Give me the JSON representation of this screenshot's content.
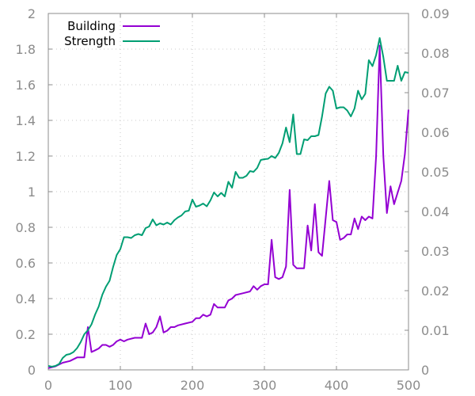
{
  "chart_data": {
    "type": "line",
    "title": "",
    "xlabel": "",
    "ylabel": "",
    "y2label": "",
    "grid": true,
    "legend_position": "top-left",
    "xlim": [
      0,
      500
    ],
    "ylim": [
      0,
      2
    ],
    "y2lim": [
      0,
      0.09
    ],
    "x_ticks": [
      0,
      100,
      200,
      300,
      400,
      500
    ],
    "y_ticks": [
      0,
      0.2,
      0.4,
      0.6,
      0.8,
      1,
      1.2,
      1.4,
      1.6,
      1.8,
      2
    ],
    "y2_ticks": [
      0,
      0.01,
      0.02,
      0.03,
      0.04,
      0.05,
      0.06,
      0.07,
      0.08,
      0.09
    ],
    "series": [
      {
        "name": "Building",
        "axis": "left",
        "color": "#9400d3",
        "points": [
          [
            0,
            0.01
          ],
          [
            10,
            0.02
          ],
          [
            20,
            0.04
          ],
          [
            30,
            0.05
          ],
          [
            40,
            0.07
          ],
          [
            50,
            0.07
          ],
          [
            55,
            0.24
          ],
          [
            60,
            0.1
          ],
          [
            65,
            0.11
          ],
          [
            70,
            0.12
          ],
          [
            75,
            0.14
          ],
          [
            80,
            0.14
          ],
          [
            85,
            0.13
          ],
          [
            90,
            0.14
          ],
          [
            95,
            0.16
          ],
          [
            100,
            0.17
          ],
          [
            105,
            0.16
          ],
          [
            110,
            0.17
          ],
          [
            120,
            0.18
          ],
          [
            130,
            0.18
          ],
          [
            135,
            0.26
          ],
          [
            140,
            0.2
          ],
          [
            145,
            0.21
          ],
          [
            150,
            0.24
          ],
          [
            155,
            0.3
          ],
          [
            160,
            0.21
          ],
          [
            165,
            0.22
          ],
          [
            170,
            0.24
          ],
          [
            175,
            0.24
          ],
          [
            180,
            0.25
          ],
          [
            190,
            0.26
          ],
          [
            200,
            0.27
          ],
          [
            205,
            0.29
          ],
          [
            210,
            0.29
          ],
          [
            215,
            0.31
          ],
          [
            220,
            0.3
          ],
          [
            225,
            0.31
          ],
          [
            230,
            0.37
          ],
          [
            235,
            0.35
          ],
          [
            240,
            0.35
          ],
          [
            245,
            0.35
          ],
          [
            250,
            0.39
          ],
          [
            255,
            0.4
          ],
          [
            260,
            0.42
          ],
          [
            270,
            0.43
          ],
          [
            280,
            0.44
          ],
          [
            285,
            0.47
          ],
          [
            290,
            0.45
          ],
          [
            295,
            0.47
          ],
          [
            300,
            0.48
          ],
          [
            305,
            0.48
          ],
          [
            310,
            0.73
          ],
          [
            315,
            0.52
          ],
          [
            320,
            0.51
          ],
          [
            325,
            0.52
          ],
          [
            330,
            0.58
          ],
          [
            335,
            1.01
          ],
          [
            340,
            0.59
          ],
          [
            345,
            0.57
          ],
          [
            350,
            0.57
          ],
          [
            355,
            0.57
          ],
          [
            360,
            0.81
          ],
          [
            365,
            0.67
          ],
          [
            370,
            0.93
          ],
          [
            375,
            0.66
          ],
          [
            380,
            0.64
          ],
          [
            390,
            1.06
          ],
          [
            395,
            0.84
          ],
          [
            400,
            0.83
          ],
          [
            405,
            0.73
          ],
          [
            410,
            0.74
          ],
          [
            415,
            0.76
          ],
          [
            420,
            0.76
          ],
          [
            425,
            0.85
          ],
          [
            430,
            0.79
          ],
          [
            435,
            0.86
          ],
          [
            440,
            0.84
          ],
          [
            445,
            0.86
          ],
          [
            450,
            0.85
          ],
          [
            455,
            1.2
          ],
          [
            460,
            1.82
          ],
          [
            465,
            1.2
          ],
          [
            470,
            0.88
          ],
          [
            475,
            1.03
          ],
          [
            480,
            0.93
          ],
          [
            490,
            1.06
          ],
          [
            495,
            1.21
          ],
          [
            500,
            1.46
          ]
        ]
      },
      {
        "name": "Strength",
        "axis": "right",
        "color": "#009e73",
        "points": [
          [
            0,
            0.001
          ],
          [
            5,
            0.0008
          ],
          [
            10,
            0.001
          ],
          [
            15,
            0.0015
          ],
          [
            20,
            0.003
          ],
          [
            25,
            0.0038
          ],
          [
            30,
            0.004
          ],
          [
            35,
            0.0045
          ],
          [
            40,
            0.0055
          ],
          [
            45,
            0.007
          ],
          [
            50,
            0.009
          ],
          [
            55,
            0.01
          ],
          [
            60,
            0.0115
          ],
          [
            65,
            0.014
          ],
          [
            70,
            0.016
          ],
          [
            75,
            0.019
          ],
          [
            80,
            0.021
          ],
          [
            85,
            0.0225
          ],
          [
            90,
            0.026
          ],
          [
            95,
            0.029
          ],
          [
            100,
            0.0305
          ],
          [
            105,
            0.0335
          ],
          [
            110,
            0.0335
          ],
          [
            115,
            0.0333
          ],
          [
            120,
            0.034
          ],
          [
            125,
            0.0343
          ],
          [
            130,
            0.034
          ],
          [
            135,
            0.0358
          ],
          [
            140,
            0.0362
          ],
          [
            145,
            0.038
          ],
          [
            150,
            0.0365
          ],
          [
            155,
            0.037
          ],
          [
            160,
            0.0367
          ],
          [
            165,
            0.0372
          ],
          [
            170,
            0.0367
          ],
          [
            175,
            0.0378
          ],
          [
            180,
            0.0385
          ],
          [
            185,
            0.039
          ],
          [
            190,
            0.04
          ],
          [
            195,
            0.0402
          ],
          [
            200,
            0.043
          ],
          [
            205,
            0.0412
          ],
          [
            210,
            0.0415
          ],
          [
            215,
            0.042
          ],
          [
            220,
            0.0413
          ],
          [
            225,
            0.0428
          ],
          [
            230,
            0.0448
          ],
          [
            235,
            0.0438
          ],
          [
            240,
            0.0447
          ],
          [
            245,
            0.0438
          ],
          [
            250,
            0.0475
          ],
          [
            255,
            0.046
          ],
          [
            260,
            0.05
          ],
          [
            265,
            0.0485
          ],
          [
            270,
            0.0485
          ],
          [
            275,
            0.049
          ],
          [
            280,
            0.0502
          ],
          [
            285,
            0.05
          ],
          [
            290,
            0.051
          ],
          [
            295,
            0.053
          ],
          [
            300,
            0.0532
          ],
          [
            305,
            0.0533
          ],
          [
            310,
            0.054
          ],
          [
            315,
            0.0535
          ],
          [
            320,
            0.0548
          ],
          [
            325,
            0.0572
          ],
          [
            330,
            0.0612
          ],
          [
            335,
            0.0575
          ],
          [
            340,
            0.0645
          ],
          [
            345,
            0.0545
          ],
          [
            350,
            0.0545
          ],
          [
            355,
            0.0582
          ],
          [
            360,
            0.058
          ],
          [
            365,
            0.059
          ],
          [
            370,
            0.059
          ],
          [
            375,
            0.0593
          ],
          [
            380,
            0.064
          ],
          [
            385,
            0.0698
          ],
          [
            390,
            0.0715
          ],
          [
            395,
            0.0705
          ],
          [
            400,
            0.066
          ],
          [
            405,
            0.0663
          ],
          [
            410,
            0.0663
          ],
          [
            415,
            0.0655
          ],
          [
            420,
            0.064
          ],
          [
            425,
            0.066
          ],
          [
            430,
            0.0705
          ],
          [
            435,
            0.0683
          ],
          [
            440,
            0.0697
          ],
          [
            445,
            0.0782
          ],
          [
            450,
            0.0767
          ],
          [
            455,
            0.0795
          ],
          [
            460,
            0.0838
          ],
          [
            465,
            0.079
          ],
          [
            470,
            0.073
          ],
          [
            475,
            0.073
          ],
          [
            480,
            0.073
          ],
          [
            485,
            0.0768
          ],
          [
            490,
            0.073
          ],
          [
            495,
            0.0752
          ],
          [
            500,
            0.075
          ]
        ]
      }
    ]
  }
}
